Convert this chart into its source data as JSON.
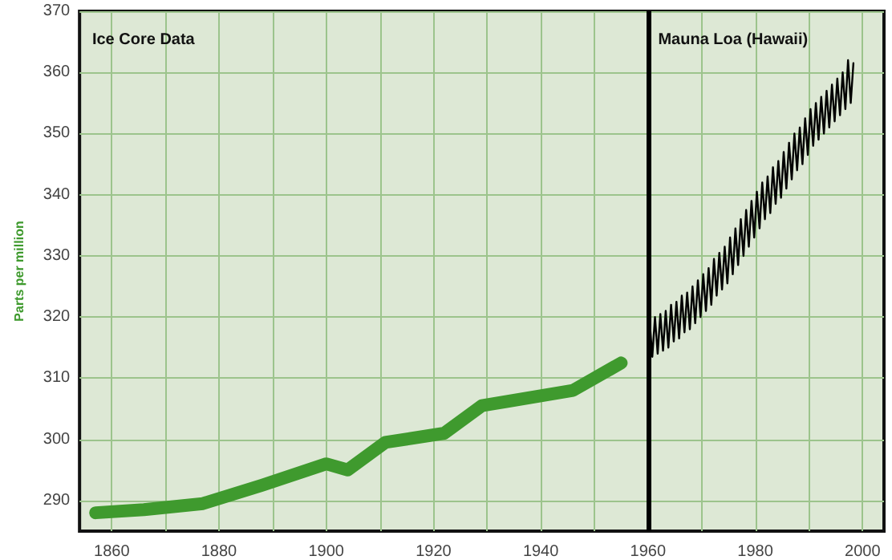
{
  "chart_data": {
    "type": "line",
    "ylabel": "Parts per million",
    "annotations": [
      "Ice Core Data",
      "Mauna Loa (Hawaii)"
    ],
    "xlim": [
      1854,
      2004
    ],
    "xticks": [
      1860,
      {
        "value": 1870,
        "label": null
      },
      1880,
      {
        "value": 1890,
        "label": null
      },
      1900,
      {
        "value": 1910,
        "label": null
      },
      1920,
      {
        "value": 1930,
        "label": null
      },
      1940,
      {
        "value": 1950,
        "label": null
      },
      1960,
      {
        "value": 1970,
        "label": null
      },
      1980,
      {
        "value": 1990,
        "label": null
      },
      2000
    ],
    "ylim": [
      285,
      370
    ],
    "yticks": [
      290,
      300,
      310,
      320,
      330,
      340,
      350,
      360,
      370
    ],
    "grid": true,
    "marker": "none",
    "ref_lines": [
      {
        "axis": "x",
        "value": 1960,
        "color": "#000000"
      }
    ],
    "series": [
      {
        "color": "#3f9a2e",
        "x": [
          1857,
          1866,
          1877,
          1888,
          1900,
          1904,
          1911,
          1922,
          1929,
          1946,
          1955
        ],
        "values": [
          288,
          288.5,
          289.5,
          292.5,
          296,
          295,
          299.5,
          301,
          305.5,
          308,
          312.5
        ]
      },
      {
        "color": "#000000",
        "x": [
          1960.3,
          1960.8,
          1961.3,
          1961.8,
          1962.3,
          1962.8,
          1963.3,
          1963.8,
          1964.3,
          1964.8,
          1965.3,
          1965.8,
          1966.3,
          1966.8,
          1967.3,
          1967.8,
          1968.3,
          1968.8,
          1969.3,
          1969.8,
          1970.3,
          1970.8,
          1971.3,
          1971.8,
          1972.3,
          1972.8,
          1973.3,
          1973.8,
          1974.3,
          1974.8,
          1975.3,
          1975.8,
          1976.3,
          1976.8,
          1977.3,
          1977.8,
          1978.3,
          1978.8,
          1979.3,
          1979.8,
          1980.3,
          1980.8,
          1981.3,
          1981.8,
          1982.3,
          1982.8,
          1983.3,
          1983.8,
          1984.3,
          1984.8,
          1985.3,
          1985.8,
          1986.3,
          1986.8,
          1987.3,
          1987.8,
          1988.3,
          1988.8,
          1989.3,
          1989.8,
          1990.3,
          1990.8,
          1991.3,
          1991.8,
          1992.3,
          1992.8,
          1993.3,
          1993.8,
          1994.3,
          1994.8,
          1995.3,
          1995.8,
          1996.3,
          1996.8,
          1997.3,
          1997.8,
          1998.3
        ],
        "values": [
          319.5,
          313.5,
          320,
          314,
          320.5,
          314.5,
          321,
          315,
          322,
          316,
          322.5,
          316.5,
          323.5,
          317.5,
          324,
          318,
          325,
          319,
          326,
          320,
          327,
          321,
          328,
          322,
          329.5,
          323.5,
          330.5,
          324.5,
          331.5,
          325.5,
          333,
          327,
          334.5,
          328.5,
          336,
          330,
          337.5,
          331.5,
          339,
          333,
          340.5,
          334.5,
          342,
          336,
          343,
          337,
          344.5,
          338.5,
          345.5,
          339.5,
          347,
          341,
          348.5,
          342.5,
          350,
          344,
          351,
          345,
          352.5,
          346.5,
          354,
          348,
          355,
          349,
          356,
          350,
          357,
          351,
          358,
          352,
          359,
          353,
          360,
          354,
          362,
          355,
          361.5
        ]
      }
    ]
  }
}
